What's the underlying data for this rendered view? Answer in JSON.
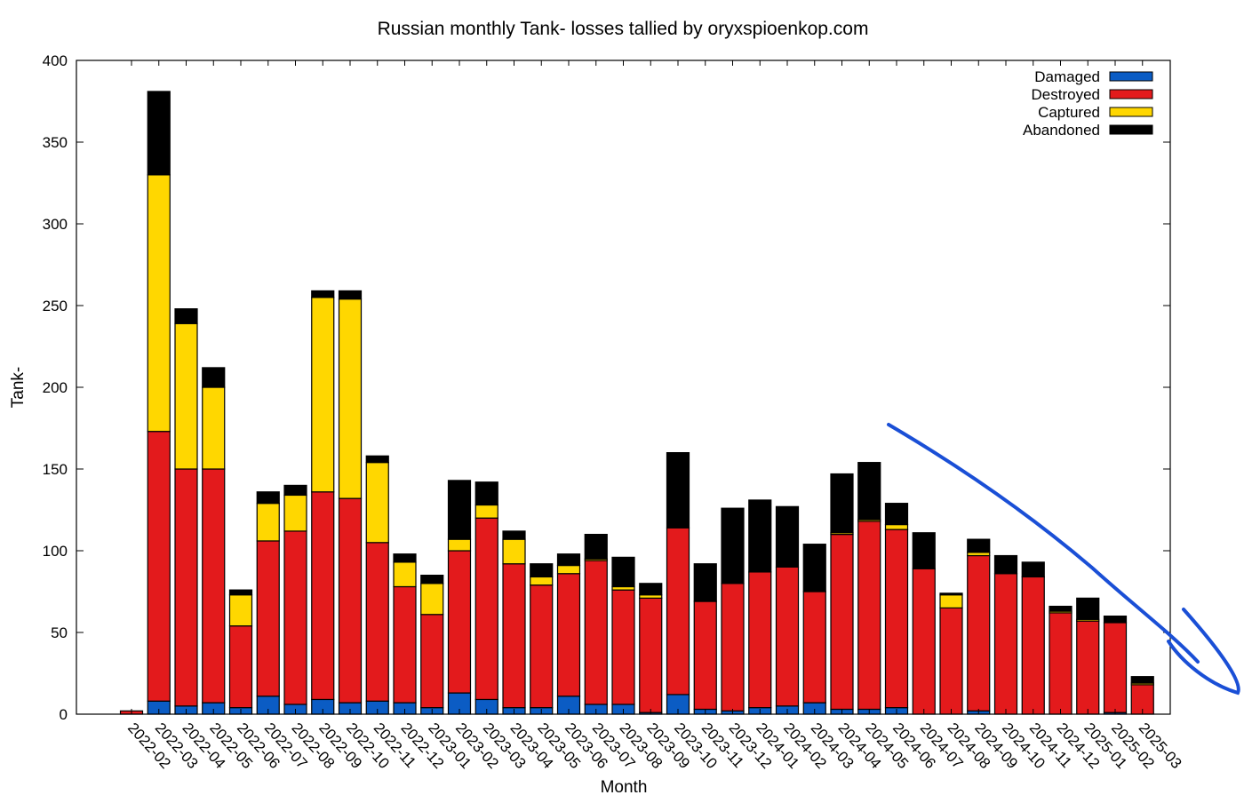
{
  "chart_data": {
    "type": "bar",
    "stacked": true,
    "title": "Russian monthly Tank- losses tallied by oryxspioenkop.com",
    "xlabel": "Month",
    "ylabel": "Tank-",
    "ylim": [
      0,
      400
    ],
    "yticks": [
      0,
      50,
      100,
      150,
      200,
      250,
      300,
      350,
      400
    ],
    "grid": false,
    "legend_position": "top-right",
    "categories": [
      "2022-02",
      "2022-03",
      "2022-04",
      "2022-05",
      "2022-06",
      "2022-07",
      "2022-08",
      "2022-09",
      "2022-10",
      "2022-11",
      "2022-12",
      "2023-01",
      "2023-02",
      "2023-03",
      "2023-04",
      "2023-05",
      "2023-06",
      "2023-07",
      "2023-08",
      "2023-09",
      "2023-10",
      "2023-11",
      "2023-12",
      "2024-01",
      "2024-02",
      "2024-03",
      "2024-04",
      "2024-05",
      "2024-06",
      "2024-07",
      "2024-08",
      "2024-09",
      "2024-10",
      "2024-11",
      "2024-12",
      "2025-01",
      "2025-02",
      "2025-03"
    ],
    "series": [
      {
        "name": "Damaged",
        "color": "#0b5cc4",
        "values": [
          0,
          8,
          5,
          7,
          4,
          11,
          6,
          9,
          7,
          8,
          7,
          4,
          13,
          9,
          4,
          4,
          11,
          6,
          6,
          1,
          12,
          3,
          2,
          4,
          5,
          7,
          3,
          3,
          4,
          0,
          0,
          2,
          0,
          0,
          0,
          0,
          1,
          0
        ]
      },
      {
        "name": "Destroyed",
        "color": "#e31a1c",
        "values": [
          2,
          165,
          145,
          143,
          50,
          95,
          106,
          127,
          125,
          97,
          71,
          57,
          87,
          111,
          88,
          75,
          75,
          88,
          70,
          70,
          102,
          66,
          78,
          83,
          85,
          68,
          107,
          115,
          109,
          89,
          65,
          95,
          86,
          84,
          62,
          57,
          55,
          18
        ]
      },
      {
        "name": "Captured",
        "color": "#ffd700",
        "values": [
          0,
          157,
          89,
          50,
          19,
          23,
          22,
          119,
          122,
          49,
          15,
          19,
          7,
          8,
          15,
          5,
          5,
          1,
          2,
          2,
          0,
          0,
          0,
          0,
          0,
          0,
          1,
          1,
          3,
          0,
          8,
          2,
          0,
          0,
          1,
          1,
          0,
          1
        ]
      },
      {
        "name": "Abandoned",
        "color": "#000000",
        "values": [
          0,
          51,
          9,
          12,
          3,
          7,
          6,
          4,
          5,
          4,
          5,
          5,
          36,
          14,
          5,
          8,
          7,
          15,
          18,
          7,
          46,
          23,
          46,
          44,
          37,
          29,
          36,
          35,
          13,
          22,
          1,
          8,
          11,
          9,
          3,
          13,
          4,
          4
        ]
      }
    ],
    "annotation": {
      "type": "hand-drawn downward trend line",
      "color": "#1a4fd6"
    }
  }
}
